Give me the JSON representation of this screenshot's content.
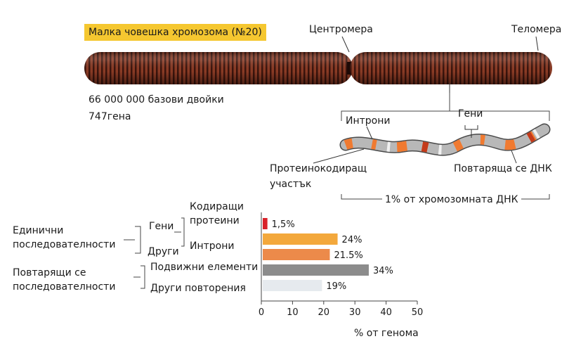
{
  "chromosome": {
    "title": "Малка човешка хромозома (№20)",
    "centromere": "Центромера",
    "telomere": "Теломера",
    "base_pairs": "66 000 000 базови двойки",
    "genes": "747гена"
  },
  "dna_detail": {
    "introns": "Интрони",
    "genes": "Гени",
    "protein_coding": [
      "Протеинокодиращ",
      "участък"
    ],
    "repeats": "Повтаряща се ДНК",
    "fraction": "1% от хромозомната ДНК"
  },
  "classification": {
    "single_sequences": [
      "Единични",
      "последователности"
    ],
    "repeated_sequences": [
      "Повтарящи се",
      "последователности"
    ],
    "genes": "Гени",
    "other": "Други",
    "coding_proteins": [
      "Кодиращи",
      "протеини"
    ],
    "introns": "Интрони",
    "mobile_elements": "Подвижни елементи",
    "other_repeats": "Други повторения"
  },
  "colors": {
    "title_highlight": "#f5c730",
    "chromosome": "#8a3b25",
    "coding_bar": "#d9232a",
    "introns_bar": "#f3a83c",
    "other_bar": "#ec8a4a",
    "mobile_bar": "#8c8c8c",
    "repeats_bar": "#e6eaee"
  },
  "chart_data": {
    "type": "bar",
    "orientation": "horizontal",
    "categories": [
      "Кодиращи протеини",
      "Интрони",
      "Други",
      "Подвижни елементи",
      "Други повторения"
    ],
    "values": [
      1.5,
      24,
      21.5,
      34,
      19
    ],
    "value_labels": [
      "1,5%",
      "24%",
      "21.5%",
      "34%",
      "19%"
    ],
    "xlabel": "% от генома",
    "xlim": [
      0,
      50
    ],
    "xticks": [
      "0",
      "10",
      "20",
      "30",
      "40",
      "50"
    ]
  }
}
